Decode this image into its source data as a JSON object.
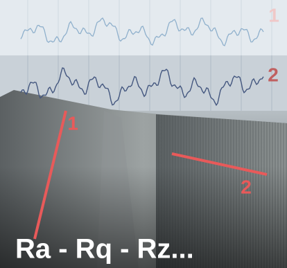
{
  "profiles": {
    "top_label": "1",
    "bottom_label": "2"
  },
  "surface": {
    "line_1_label": "1",
    "line_2_label": "2"
  },
  "caption": "Ra - Rq - Rz..."
}
